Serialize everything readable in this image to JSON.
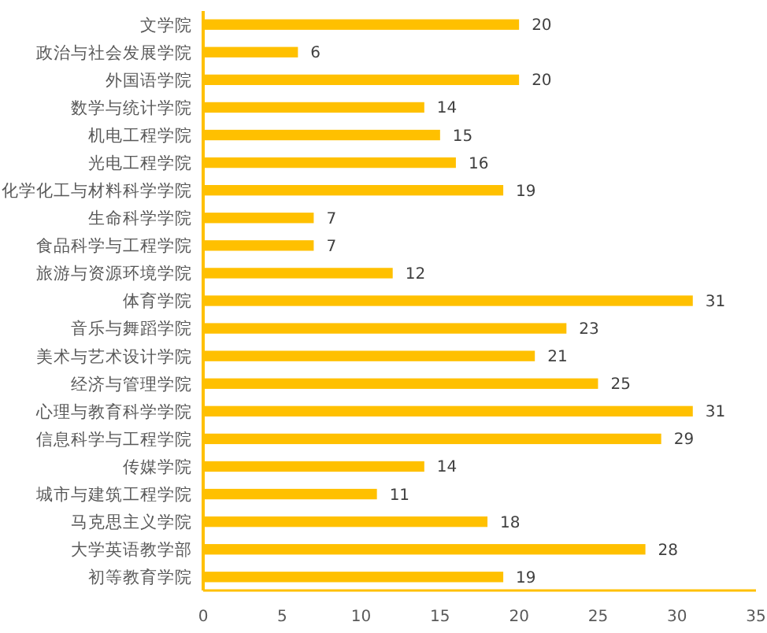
{
  "chart_data": {
    "type": "bar",
    "orientation": "horizontal",
    "categories": [
      "文学院",
      "政治与社会发展学院",
      "外国语学院",
      "数学与统计学院",
      "机电工程学院",
      "光电工程学院",
      "化学化工与材料科学学院",
      "生命科学学院",
      "食品科学与工程学院",
      "旅游与资源环境学院",
      "体育学院",
      "音乐与舞蹈学院",
      "美术与艺术设计学院",
      "经济与管理学院",
      "心理与教育科学学院",
      "信息科学与工程学院",
      "传媒学院",
      "城市与建筑工程学院",
      "马克思主义学院",
      "大学英语教学部",
      "初等教育学院"
    ],
    "values": [
      20,
      6,
      20,
      14,
      15,
      16,
      19,
      7,
      7,
      12,
      31,
      23,
      21,
      25,
      31,
      29,
      14,
      11,
      18,
      28,
      19
    ],
    "color": "#ffc000",
    "xlim": [
      0,
      35
    ],
    "xticks": [
      0,
      5,
      10,
      15,
      20,
      25,
      30,
      35
    ],
    "data_labels": true,
    "grid": false
  }
}
